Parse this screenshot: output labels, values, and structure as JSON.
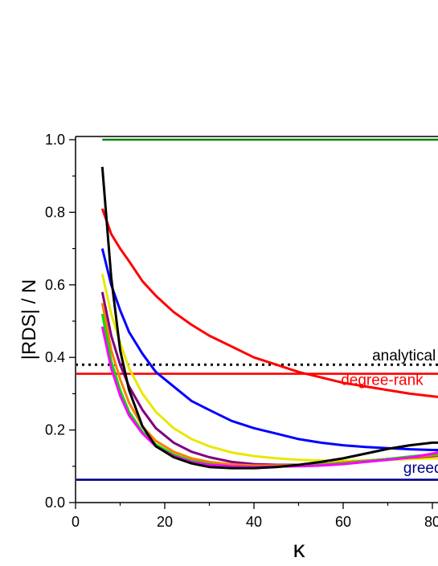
{
  "chart_data": {
    "type": "line",
    "title": "",
    "xlabel": "κ",
    "ylabel": "|RDS| / N",
    "xlim": [
      0,
      82
    ],
    "ylim": [
      0,
      1.0
    ],
    "x_ticks": [
      "0",
      "20",
      "40",
      "60",
      "80"
    ],
    "y_ticks": [
      "0.0",
      "0.2",
      "0.4",
      "0.6",
      "0.8",
      "1.0"
    ],
    "grid": false,
    "legend": "none",
    "reference_lines": [
      {
        "name": "",
        "y": 1.0,
        "color": "#008000",
        "style": "solid"
      },
      {
        "name": "analytical",
        "y": 0.38,
        "color": "#000000",
        "style": "dotted"
      },
      {
        "name": "degree-rank",
        "y": 0.355,
        "color": "#ff0000",
        "style": "solid"
      },
      {
        "name": "greedy",
        "y": 0.063,
        "color": "#00008b",
        "style": "solid"
      }
    ],
    "annotations": [
      {
        "text": "analytical",
        "x": 66.5,
        "y": 0.392,
        "color": "#000000"
      },
      {
        "text": "degree-rank",
        "x": 59.5,
        "y": 0.324,
        "color": "#ff0000"
      },
      {
        "text": "greedy",
        "x": 73.5,
        "y": 0.082,
        "color": "#00008b"
      }
    ],
    "series": [
      {
        "color": "#ff0000",
        "x": [
          6,
          8,
          10,
          12,
          15,
          18,
          22,
          26,
          30,
          35,
          40,
          45,
          50,
          55,
          60,
          65,
          70,
          75,
          80,
          82
        ],
        "y": [
          0.81,
          0.74,
          0.7,
          0.665,
          0.61,
          0.57,
          0.525,
          0.49,
          0.46,
          0.43,
          0.4,
          0.38,
          0.36,
          0.345,
          0.33,
          0.32,
          0.31,
          0.3,
          0.293,
          0.29
        ]
      },
      {
        "color": "#0000ff",
        "x": [
          6,
          8,
          10,
          12,
          15,
          18,
          22,
          26,
          30,
          35,
          40,
          45,
          50,
          55,
          60,
          65,
          70,
          75,
          80,
          82
        ],
        "y": [
          0.7,
          0.6,
          0.53,
          0.47,
          0.41,
          0.36,
          0.32,
          0.28,
          0.255,
          0.225,
          0.205,
          0.19,
          0.175,
          0.165,
          0.158,
          0.153,
          0.15,
          0.147,
          0.145,
          0.145
        ]
      },
      {
        "color": "#e8e800",
        "x": [
          6,
          8,
          10,
          12,
          15,
          18,
          22,
          26,
          30,
          35,
          40,
          45,
          50,
          55,
          60,
          65,
          70,
          75,
          80,
          82
        ],
        "y": [
          0.63,
          0.52,
          0.44,
          0.37,
          0.3,
          0.25,
          0.205,
          0.175,
          0.155,
          0.138,
          0.128,
          0.122,
          0.118,
          0.116,
          0.115,
          0.116,
          0.118,
          0.12,
          0.122,
          0.122
        ]
      },
      {
        "color": "#800080",
        "x": [
          6,
          8,
          10,
          12,
          15,
          18,
          22,
          26,
          30,
          35,
          40,
          45,
          50,
          55,
          60,
          65,
          70,
          75,
          80,
          82
        ],
        "y": [
          0.58,
          0.46,
          0.38,
          0.32,
          0.255,
          0.205,
          0.165,
          0.14,
          0.125,
          0.112,
          0.106,
          0.104,
          0.104,
          0.106,
          0.11,
          0.115,
          0.12,
          0.124,
          0.128,
          0.13
        ]
      },
      {
        "color": "#ff8000",
        "x": [
          6,
          8,
          10,
          12,
          15,
          18,
          22,
          26,
          30,
          35,
          40,
          45,
          50,
          55,
          60,
          65,
          70,
          75,
          80,
          82
        ],
        "y": [
          0.55,
          0.42,
          0.34,
          0.275,
          0.21,
          0.17,
          0.14,
          0.122,
          0.112,
          0.105,
          0.102,
          0.102,
          0.103,
          0.106,
          0.11,
          0.115,
          0.12,
          0.125,
          0.13,
          0.132
        ]
      },
      {
        "color": "#00e000",
        "x": [
          6,
          8,
          10,
          12,
          15,
          18,
          22,
          26,
          30,
          35,
          40,
          45,
          50,
          55,
          60,
          65,
          70,
          75,
          80,
          82
        ],
        "y": [
          0.52,
          0.39,
          0.31,
          0.25,
          0.195,
          0.16,
          0.132,
          0.115,
          0.106,
          0.1,
          0.098,
          0.099,
          0.101,
          0.104,
          0.108,
          0.114,
          0.12,
          0.127,
          0.133,
          0.135
        ]
      },
      {
        "color": "#ff00ff",
        "x": [
          6,
          8,
          10,
          12,
          15,
          18,
          22,
          26,
          30,
          35,
          40,
          45,
          50,
          55,
          60,
          65,
          70,
          75,
          80,
          82
        ],
        "y": [
          0.485,
          0.37,
          0.295,
          0.24,
          0.19,
          0.155,
          0.128,
          0.112,
          0.104,
          0.1,
          0.098,
          0.099,
          0.1,
          0.102,
          0.106,
          0.112,
          0.118,
          0.124,
          0.135,
          0.14
        ]
      },
      {
        "color": "#000000",
        "x": [
          6,
          8,
          10,
          12,
          15,
          18,
          22,
          26,
          30,
          35,
          40,
          45,
          50,
          55,
          60,
          65,
          70,
          75,
          80,
          82
        ],
        "y": [
          0.925,
          0.62,
          0.42,
          0.31,
          0.21,
          0.155,
          0.125,
          0.108,
          0.098,
          0.095,
          0.095,
          0.098,
          0.104,
          0.112,
          0.122,
          0.135,
          0.148,
          0.158,
          0.165,
          0.165
        ]
      }
    ]
  }
}
